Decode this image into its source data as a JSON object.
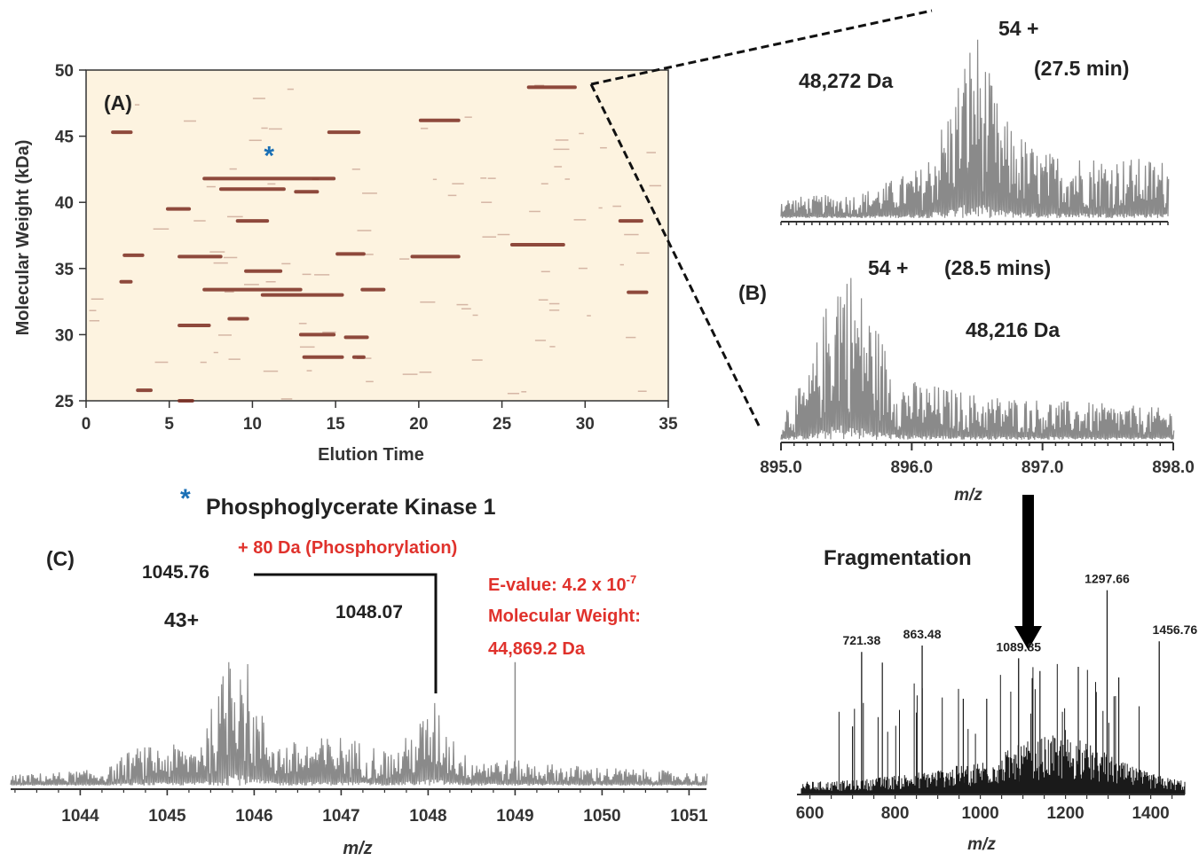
{
  "chart_data": [
    {
      "type": "heatmap",
      "panel": "(A)",
      "xlabel": "Elution Time",
      "ylabel": "Molecular Weight (kDa)",
      "xlim": [
        0,
        35
      ],
      "ylim": [
        25,
        50
      ],
      "xticks": [
        "0",
        "5",
        "10",
        "15",
        "20",
        "25",
        "30",
        "35"
      ],
      "yticks": [
        "25",
        "30",
        "35",
        "40",
        "45",
        "50"
      ],
      "background_color": "#fdf3e0",
      "band_color": "#7a2a1e",
      "marker": "*",
      "marker_color": "#1a6fb5",
      "marker_point": {
        "x": 11,
        "y": 43.8
      },
      "bands": [
        {
          "x0": 26.5,
          "x1": 29.5,
          "y": 48.7
        },
        {
          "x0": 20.0,
          "x1": 22.5,
          "y": 46.2
        },
        {
          "x0": 14.5,
          "x1": 16.5,
          "y": 45.3
        },
        {
          "x0": 1.5,
          "x1": 2.8,
          "y": 45.3
        },
        {
          "x0": 7.0,
          "x1": 15.0,
          "y": 41.8
        },
        {
          "x0": 8.0,
          "x1": 12.0,
          "y": 41.0
        },
        {
          "x0": 12.5,
          "x1": 14.0,
          "y": 40.8
        },
        {
          "x0": 4.8,
          "x1": 6.3,
          "y": 39.5
        },
        {
          "x0": 9.0,
          "x1": 11.0,
          "y": 38.6
        },
        {
          "x0": 32.0,
          "x1": 33.5,
          "y": 38.6
        },
        {
          "x0": 25.5,
          "x1": 28.8,
          "y": 36.8
        },
        {
          "x0": 19.5,
          "x1": 22.5,
          "y": 35.9
        },
        {
          "x0": 5.5,
          "x1": 8.2,
          "y": 35.9
        },
        {
          "x0": 15.0,
          "x1": 16.8,
          "y": 36.1
        },
        {
          "x0": 2.2,
          "x1": 3.5,
          "y": 36.0
        },
        {
          "x0": 9.5,
          "x1": 11.8,
          "y": 34.8
        },
        {
          "x0": 2.0,
          "x1": 2.8,
          "y": 34.0
        },
        {
          "x0": 7.0,
          "x1": 13.0,
          "y": 33.4
        },
        {
          "x0": 16.5,
          "x1": 18.0,
          "y": 33.4
        },
        {
          "x0": 32.5,
          "x1": 33.8,
          "y": 33.2
        },
        {
          "x0": 10.5,
          "x1": 15.5,
          "y": 33.0
        },
        {
          "x0": 8.5,
          "x1": 9.8,
          "y": 31.2
        },
        {
          "x0": 5.5,
          "x1": 7.5,
          "y": 30.7
        },
        {
          "x0": 12.8,
          "x1": 15.0,
          "y": 30.0
        },
        {
          "x0": 15.5,
          "x1": 17.0,
          "y": 29.8
        },
        {
          "x0": 13.0,
          "x1": 15.5,
          "y": 28.3
        },
        {
          "x0": 16.0,
          "x1": 16.8,
          "y": 28.3
        },
        {
          "x0": 3.0,
          "x1": 4.0,
          "y": 25.8
        },
        {
          "x0": 5.5,
          "x1": 6.5,
          "y": 25.0
        }
      ]
    },
    {
      "type": "line",
      "panel": "(B) top",
      "charge": "54 +",
      "time": "(27.5 min)",
      "mass": "48,272 Da",
      "xlim": [
        895.0,
        898.0
      ],
      "envelope": [
        {
          "x": 895.0,
          "y": 0.1
        },
        {
          "x": 895.6,
          "y": 0.12
        },
        {
          "x": 896.1,
          "y": 0.25
        },
        {
          "x": 896.3,
          "y": 0.55
        },
        {
          "x": 896.5,
          "y": 0.95
        },
        {
          "x": 896.7,
          "y": 0.5
        },
        {
          "x": 897.0,
          "y": 0.32
        },
        {
          "x": 898.0,
          "y": 0.28
        }
      ]
    },
    {
      "type": "line",
      "panel": "(B)",
      "charge": "54 +",
      "time": "(28.5 mins)",
      "mass": "48,216 Da",
      "xlabel": "m/z",
      "xlim": [
        895.0,
        898.0
      ],
      "xticks": [
        "895.0",
        "896.0",
        "897.0",
        "898.0"
      ],
      "envelope": [
        {
          "x": 895.0,
          "y": 0.15
        },
        {
          "x": 895.2,
          "y": 0.3
        },
        {
          "x": 895.45,
          "y": 0.95
        },
        {
          "x": 895.7,
          "y": 0.6
        },
        {
          "x": 895.9,
          "y": 0.3
        },
        {
          "x": 896.5,
          "y": 0.22
        },
        {
          "x": 898.0,
          "y": 0.15
        }
      ]
    },
    {
      "type": "line",
      "panel": "fragmentation",
      "xlabel": "m/z",
      "xlim": [
        580,
        1480
      ],
      "xticks": [
        "600",
        "800",
        "1000",
        "1200",
        "1400"
      ],
      "peak_labels": [
        {
          "x": 721.38,
          "label": "721.38",
          "y": 0.67
        },
        {
          "x": 863.48,
          "label": "863.48",
          "y": 0.7
        },
        {
          "x": 1089.85,
          "label": "1089.85",
          "y": 0.64
        },
        {
          "x": 1297.66,
          "label": "1297.66",
          "y": 0.96
        },
        {
          "x": 1456.76,
          "label": "1456.76",
          "y": 0.72
        }
      ]
    },
    {
      "type": "line",
      "panel": "(C)",
      "charge": "43+",
      "xlabel": "m/z",
      "xlim": [
        1043.2,
        1051.2
      ],
      "xticks": [
        "1044",
        "1045",
        "1046",
        "1047",
        "1048",
        "1049",
        "1050",
        "1051"
      ],
      "envelope": [
        {
          "x": 1043.2,
          "y": 0.05
        },
        {
          "x": 1044.3,
          "y": 0.08
        },
        {
          "x": 1044.6,
          "y": 0.18
        },
        {
          "x": 1045.3,
          "y": 0.2
        },
        {
          "x": 1045.6,
          "y": 0.45
        },
        {
          "x": 1045.76,
          "y": 0.93
        },
        {
          "x": 1046.0,
          "y": 0.4
        },
        {
          "x": 1046.3,
          "y": 0.2
        },
        {
          "x": 1047.0,
          "y": 0.24
        },
        {
          "x": 1047.6,
          "y": 0.16
        },
        {
          "x": 1048.07,
          "y": 0.4
        },
        {
          "x": 1048.4,
          "y": 0.15
        },
        {
          "x": 1049.0,
          "y": 0.12
        },
        {
          "x": 1049.5,
          "y": 0.1
        },
        {
          "x": 1051.2,
          "y": 0.06
        }
      ],
      "peaks": [
        {
          "x": 1045.76,
          "label": "1045.76"
        },
        {
          "x": 1048.07,
          "label": "1048.07"
        }
      ]
    }
  ],
  "panel_a_label": "(A)",
  "panel_b_label": "(B)",
  "panel_c_label": "(C)",
  "protein_marker": "*",
  "protein_name": "Phosphoglycerate Kinase 1",
  "b_top_mass": "48,272 Da",
  "b_top_charge": "54 +",
  "b_top_time": "(27.5 min)",
  "b_bot_charge": "54 +",
  "b_bot_time": "(28.5 mins)",
  "b_bot_mass": "48,216 Da",
  "b_xlabel": "m/z",
  "fragmentation_label": "Fragmentation",
  "frag_xlabel": "m/z",
  "c_charge": "43+",
  "c_shift_label": "+ 80 Da (Phosphorylation)",
  "c_peak1": "1045.76",
  "c_peak2": "1048.07",
  "c_evalue_prefix": "E-value: 4.2 x 10",
  "c_evalue_exp": "-7",
  "c_mw_line1": "Molecular Weight:",
  "c_mw_line2": "44,869.2 Da",
  "c_xlabel": "m/z",
  "colors": {
    "trace": "#8a8a8a",
    "frag_trace": "#1a1a1a",
    "annotation_red": "#e0322c",
    "marker_blue": "#1a6fb5",
    "heatmap_bg": "#fdf3e0",
    "band": "#7a2a1e"
  }
}
